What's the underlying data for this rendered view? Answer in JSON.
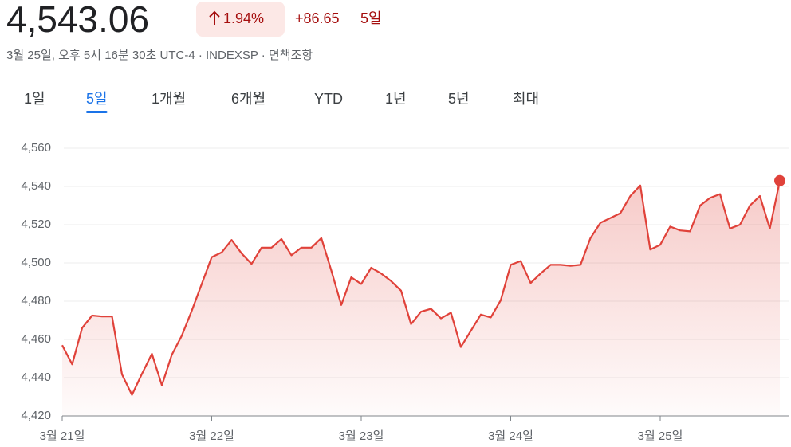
{
  "header": {
    "price": "4,543.06",
    "change_percent": "1.94%",
    "change": "+86.65",
    "period": "5일",
    "subtitle": "3월 25일, 오후 5시 16분 30초 UTC-4 · INDEXSP · 면책조항"
  },
  "tabs": [
    "1일",
    "5일",
    "1개월",
    "6개월",
    "YTD",
    "1년",
    "5년",
    "최대"
  ],
  "active_tab": 1,
  "chart_data": {
    "type": "line",
    "categories": [
      "3월 21일",
      null,
      null,
      null,
      null,
      null,
      null,
      null,
      null,
      null,
      null,
      null,
      null,
      null,
      null,
      "3월 22일",
      null,
      null,
      null,
      null,
      null,
      null,
      null,
      null,
      null,
      null,
      null,
      null,
      null,
      null,
      "3월 23일",
      null,
      null,
      null,
      null,
      null,
      null,
      null,
      null,
      null,
      null,
      null,
      null,
      null,
      null,
      "3월 24일",
      null,
      null,
      null,
      null,
      null,
      null,
      null,
      null,
      null,
      null,
      null,
      null,
      null,
      null,
      "3월 25일",
      null,
      null,
      null,
      null,
      null,
      null,
      null,
      null,
      null,
      null,
      null,
      null
    ],
    "series": [
      {
        "name": "INDEXSP",
        "color": "#e0423a",
        "values": [
          4457,
          4447,
          4466,
          4472.5,
          4472,
          4472,
          4441.7,
          4431,
          4442,
          4452.5,
          4436,
          4452,
          4462,
          4475,
          4489,
          4503,
          4505.5,
          4512,
          4505,
          4499.5,
          4508,
          4508,
          4512.5,
          4504,
          4508,
          4508,
          4513,
          4496,
          4478,
          4492.5,
          4489,
          4497.5,
          4494.5,
          4490.5,
          4485.5,
          4468,
          4474.5,
          4476,
          4471,
          4474,
          4456,
          4464.5,
          4473,
          4471.5,
          4480.5,
          4499,
          4501,
          4489.5,
          4494.5,
          4499,
          4499,
          4498.5,
          4499,
          4513,
          4521,
          4523.5,
          4526,
          4535,
          4540.5,
          4507,
          4509.5,
          4519,
          4517,
          4516.5,
          4530,
          4534,
          4536,
          4518,
          4520,
          4530,
          4535,
          4518,
          4543
        ]
      }
    ],
    "ylim": [
      4420,
      4560
    ],
    "yticks": [
      {
        "value": 4420,
        "label": "4,420"
      },
      {
        "value": 4440,
        "label": "4,440"
      },
      {
        "value": 4460,
        "label": "4,460"
      },
      {
        "value": 4480,
        "label": "4,480"
      },
      {
        "value": 4500,
        "label": "4,500"
      },
      {
        "value": 4520,
        "label": "4,520"
      },
      {
        "value": 4540,
        "label": "4,540"
      },
      {
        "value": 4560,
        "label": "4,560"
      }
    ],
    "grid": true
  }
}
